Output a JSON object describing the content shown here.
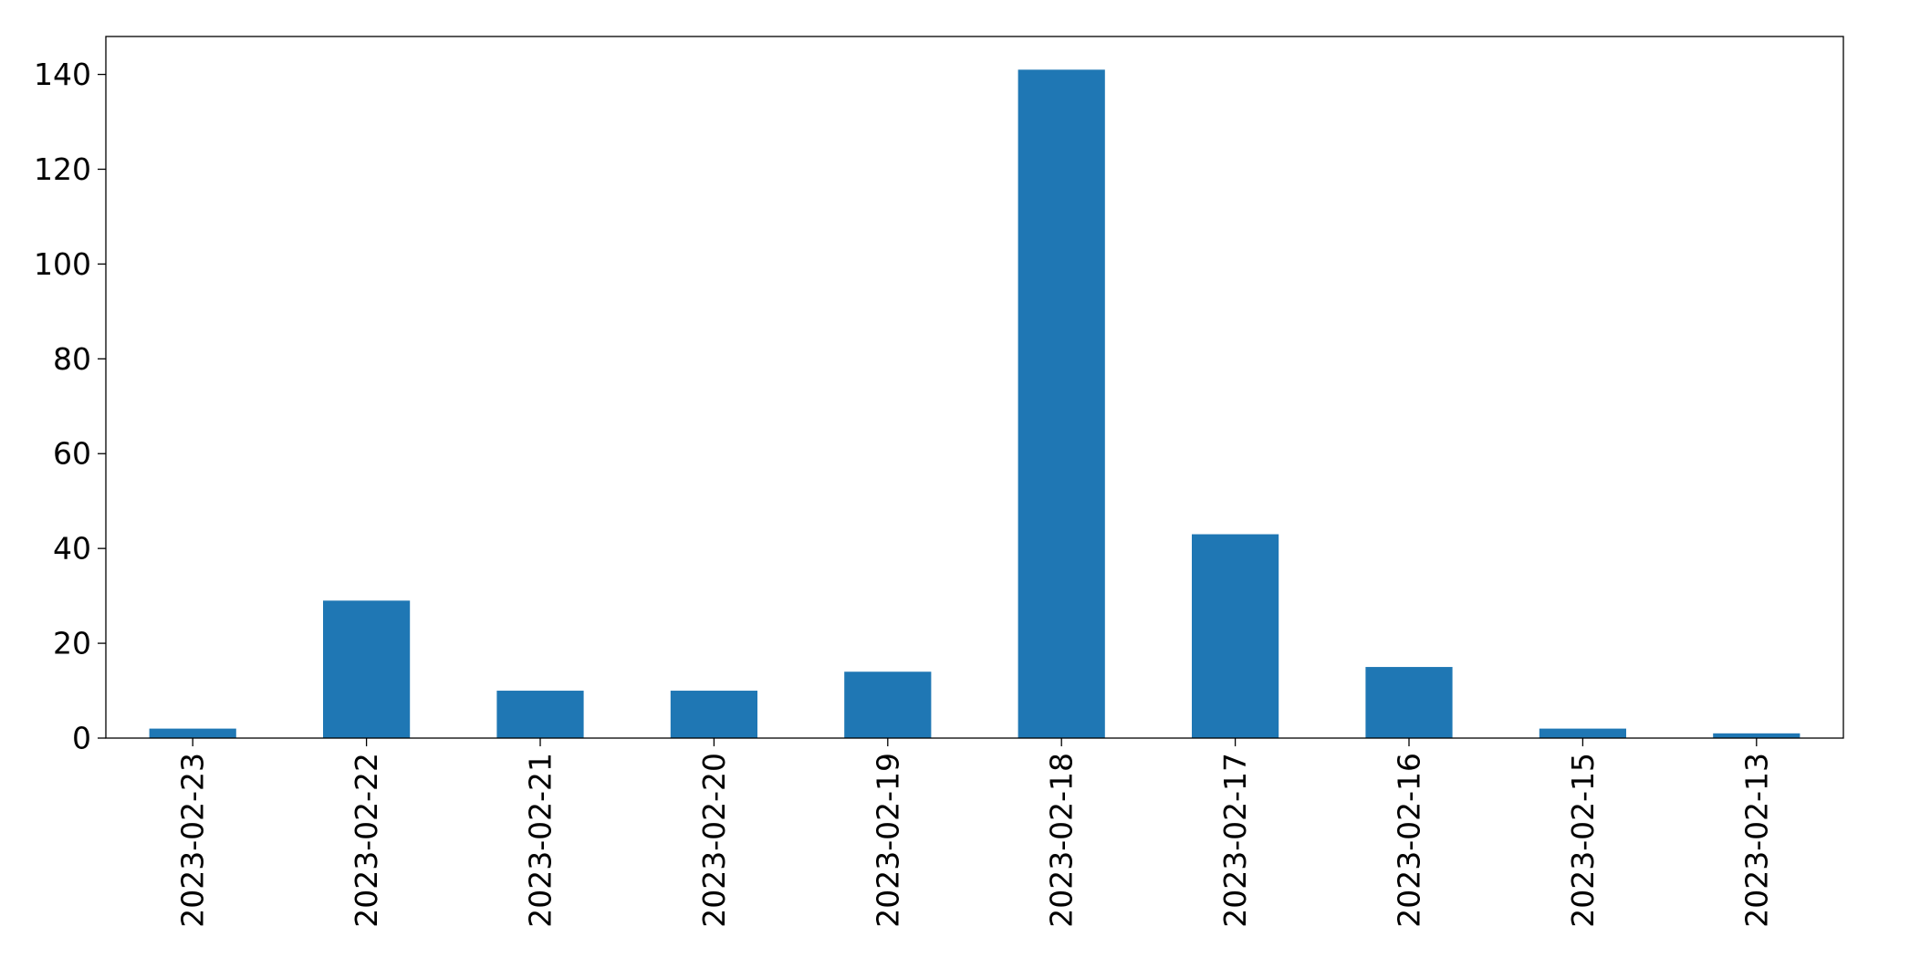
{
  "chart_data": {
    "type": "bar",
    "title": "",
    "xlabel": "",
    "ylabel": "",
    "categories": [
      "2023-02-23",
      "2023-02-22",
      "2023-02-21",
      "2023-02-20",
      "2023-02-19",
      "2023-02-18",
      "2023-02-17",
      "2023-02-16",
      "2023-02-15",
      "2023-02-13"
    ],
    "values": [
      2,
      29,
      10,
      10,
      14,
      141,
      43,
      15,
      2,
      1
    ],
    "ylim": [
      0,
      148
    ],
    "yticks": [
      0,
      20,
      40,
      60,
      80,
      100,
      120,
      140
    ],
    "bar_color": "#1f77b4",
    "grid": false,
    "legend": "none"
  }
}
